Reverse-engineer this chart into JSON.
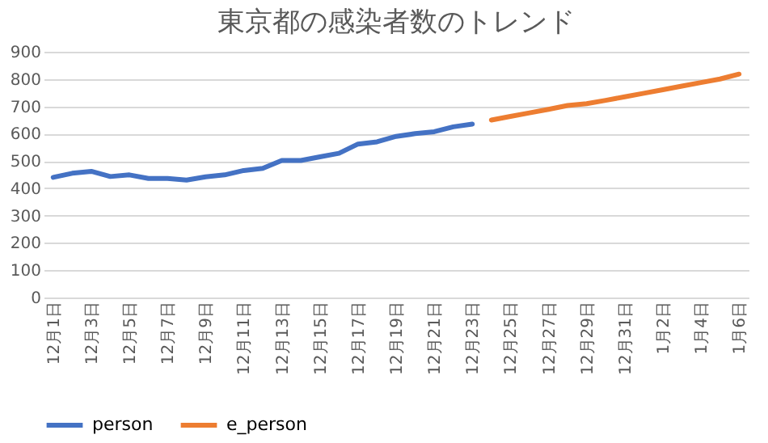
{
  "chart_data": {
    "type": "line",
    "title": "東京都の感染者数のトレンド",
    "categories": [
      "12月1日",
      null,
      "12月3日",
      null,
      "12月5日",
      null,
      "12月7日",
      null,
      "12月9日",
      null,
      "12月11日",
      null,
      "12月13日",
      null,
      "12月15日",
      null,
      "12月17日",
      null,
      "12月19日",
      null,
      "12月21日",
      null,
      "12月23日",
      null,
      "12月25日",
      null,
      "12月27日",
      null,
      "12月29日",
      null,
      "12月31日",
      null,
      "1月2日",
      null,
      "1月4日",
      null,
      "1月6日"
    ],
    "series": [
      {
        "name": "person",
        "color": "#4472c4",
        "values": [
          440,
          455,
          462,
          443,
          449,
          436,
          436,
          430,
          442,
          449,
          465,
          473,
          502,
          502,
          515,
          528,
          562,
          570,
          590,
          600,
          607,
          625,
          635,
          null,
          null,
          null,
          null,
          null,
          null,
          null,
          null,
          null,
          null,
          null,
          null,
          null,
          null
        ]
      },
      {
        "name": "e_person",
        "color": "#ed7d31",
        "values": [
          null,
          null,
          null,
          null,
          null,
          null,
          null,
          null,
          null,
          null,
          null,
          null,
          null,
          null,
          null,
          null,
          null,
          null,
          null,
          null,
          null,
          null,
          null,
          650,
          663,
          676,
          689,
          703,
          710,
          722,
          735,
          748,
          761,
          774,
          787,
          800,
          818
        ]
      }
    ],
    "ylim": [
      0,
      900
    ],
    "yticks": [
      0,
      100,
      200,
      300,
      400,
      500,
      600,
      700,
      800,
      900
    ],
    "grid": "y",
    "legend": "bottom",
    "line_style": "solid",
    "marker": "none"
  }
}
